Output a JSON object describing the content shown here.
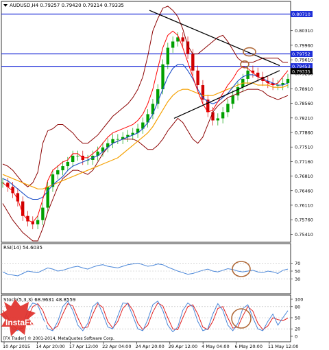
{
  "header": {
    "symbol_ohlc": "AUDUSD,H4  0.79257 0.79420 0.79214 0.79335"
  },
  "main_panel": {
    "price_labels": [
      "0.80310",
      "0.79960",
      "0.79610",
      "0.79280",
      "0.78910",
      "0.78560",
      "0.78210",
      "0.77860",
      "0.77510",
      "0.77160",
      "0.76810",
      "0.76460",
      "0.76110",
      "0.75760",
      "0.75410"
    ],
    "highlighted_levels": [
      {
        "value": "0.80710",
        "color": "#1f2fd8"
      },
      {
        "value": "0.79752",
        "color": "#1f2fd8"
      },
      {
        "value": "0.79453",
        "color": "#1f2fd8"
      },
      {
        "value": "0.79335",
        "color": "#000000"
      }
    ]
  },
  "rsi_panel": {
    "title": "RSI(14) 54.6035",
    "levels": [
      "70",
      "50",
      "30"
    ]
  },
  "stoch_panel": {
    "title": "Stoch(5,3,3) 68.9631 48.8559",
    "levels": [
      "100",
      "80",
      "50",
      "20",
      "0"
    ]
  },
  "x_axis": {
    "labels": [
      "10 Apr 2015",
      "14 Apr 20:00",
      "17 Apr 12:00",
      "22 Apr 04:00",
      "24 Apr 20:00",
      "29 Apr 12:00",
      "4 May 04:00",
      "6 May 20:00",
      "11 May 12:00"
    ]
  },
  "watermark": {
    "brand": "InstaForex"
  },
  "footer": {
    "copyright": "[FX Trader] © 2001-2014, MetaQuotes Software Corp."
  },
  "colors": {
    "upper_band": "#8b0000",
    "lower_band": "#8b0000",
    "ma_fast": "#ff0000",
    "ma_mid": "#1e50c8",
    "ma_slow": "#f5a000",
    "candles": "#00a000",
    "rsi": "#4a86d8",
    "stoch_main": "#4a86d8",
    "stoch_signal": "#e02020",
    "circle": "#b06a3a",
    "watermark_bg": "#e0302a"
  },
  "chart_data": [
    {
      "type": "line",
      "title": "AUDUSD,H4",
      "ylim": [
        0.7525,
        0.8095
      ],
      "x_labels": [
        "10 Apr 2015",
        "14 Apr 20:00",
        "17 Apr 12:00",
        "22 Apr 04:00",
        "24 Apr 20:00",
        "29 Apr 12:00",
        "4 May 04:00",
        "6 May 20:00",
        "11 May 12:00"
      ],
      "series": [
        {
          "values": [
            0.7665,
            0.7655,
            0.764,
            0.762,
            0.7585,
            0.7572,
            0.7565,
            0.7575,
            0.7605,
            0.7655,
            0.7685,
            0.7695,
            0.7705,
            0.7715,
            0.773,
            0.773,
            0.772,
            0.772,
            0.773,
            0.774,
            0.775,
            0.776,
            0.777,
            0.777,
            0.7775,
            0.778,
            0.7785,
            0.7795,
            0.781,
            0.783,
            0.7855,
            0.789,
            0.795,
            0.799,
            0.8005,
            0.8015,
            0.8005,
            0.7975,
            0.7935,
            0.79,
            0.7865,
            0.7835,
            0.7815,
            0.782,
            0.7835,
            0.7855,
            0.7875,
            0.7895,
            0.7915,
            0.7935,
            0.793,
            0.792,
            0.791,
            0.7905,
            0.79,
            0.79,
            0.7905,
            0.7915
          ]
        }
      ],
      "bollinger_upper": [
        0.771,
        0.7705,
        0.7695,
        0.768,
        0.7665,
        0.7655,
        0.7665,
        0.769,
        0.776,
        0.779,
        0.7795,
        0.7805,
        0.7805,
        0.7795,
        0.7785,
        0.777,
        0.776,
        0.776,
        0.777,
        0.778,
        0.7795,
        0.781,
        0.7825,
        0.7835,
        0.7845,
        0.7855,
        0.787,
        0.789,
        0.792,
        0.797,
        0.803,
        0.806,
        0.8085,
        0.809,
        0.808,
        0.8065,
        0.8035,
        0.7995,
        0.7975,
        0.7975,
        0.7985,
        0.7995,
        0.8005,
        0.8015,
        0.802,
        0.8005,
        0.7985,
        0.7965,
        0.7955,
        0.7955,
        0.7955,
        0.796,
        0.7965,
        0.7965,
        0.7965,
        0.7965,
        0.7955,
        0.7955
      ],
      "bollinger_lower": [
        0.7615,
        0.7595,
        0.7575,
        0.756,
        0.7545,
        0.7535,
        0.7525,
        0.7525,
        0.7555,
        0.7595,
        0.7625,
        0.7655,
        0.7675,
        0.7685,
        0.7695,
        0.7695,
        0.769,
        0.7685,
        0.7695,
        0.7715,
        0.7735,
        0.775,
        0.776,
        0.7765,
        0.777,
        0.777,
        0.777,
        0.7765,
        0.7755,
        0.7745,
        0.7745,
        0.7755,
        0.777,
        0.779,
        0.7805,
        0.782,
        0.781,
        0.779,
        0.777,
        0.776,
        0.7775,
        0.7805,
        0.7835,
        0.785,
        0.786,
        0.787,
        0.7875,
        0.788,
        0.7885,
        0.789,
        0.789,
        0.789,
        0.7885,
        0.7875,
        0.787,
        0.7865,
        0.787,
        0.7875
      ],
      "ma_fast": [
        0.7665,
        0.7655,
        0.7645,
        0.7625,
        0.759,
        0.7575,
        0.757,
        0.7585,
        0.7625,
        0.767,
        0.7695,
        0.7705,
        0.7715,
        0.772,
        0.7735,
        0.7735,
        0.7725,
        0.7725,
        0.7735,
        0.7745,
        0.776,
        0.7775,
        0.7785,
        0.779,
        0.7795,
        0.78,
        0.7805,
        0.7815,
        0.783,
        0.7855,
        0.789,
        0.794,
        0.799,
        0.802,
        0.803,
        0.802,
        0.799,
        0.7955,
        0.792,
        0.7885,
        0.7855,
        0.7835,
        0.784,
        0.786,
        0.788,
        0.79,
        0.7915,
        0.7935,
        0.7945,
        0.794,
        0.793,
        0.792,
        0.7915,
        0.7905,
        0.79,
        0.7905,
        0.792,
        0.7935
      ],
      "ma_mid": [
        0.7675,
        0.767,
        0.766,
        0.765,
        0.764,
        0.763,
        0.7625,
        0.7625,
        0.763,
        0.7645,
        0.766,
        0.767,
        0.768,
        0.7695,
        0.7705,
        0.771,
        0.7715,
        0.772,
        0.7725,
        0.773,
        0.774,
        0.775,
        0.776,
        0.7765,
        0.777,
        0.7775,
        0.778,
        0.7785,
        0.7795,
        0.781,
        0.783,
        0.786,
        0.789,
        0.792,
        0.794,
        0.795,
        0.795,
        0.7935,
        0.7915,
        0.789,
        0.787,
        0.786,
        0.7855,
        0.786,
        0.787,
        0.788,
        0.7895,
        0.791,
        0.792,
        0.7925,
        0.7925,
        0.792,
        0.7915,
        0.791,
        0.7905,
        0.79,
        0.79,
        0.7905
      ],
      "ma_slow": [
        0.7685,
        0.768,
        0.7675,
        0.767,
        0.7665,
        0.766,
        0.7655,
        0.765,
        0.765,
        0.7655,
        0.766,
        0.7665,
        0.767,
        0.7675,
        0.768,
        0.7685,
        0.769,
        0.7695,
        0.77,
        0.7705,
        0.771,
        0.7715,
        0.772,
        0.7725,
        0.7735,
        0.7745,
        0.7755,
        0.7765,
        0.7775,
        0.7785,
        0.78,
        0.782,
        0.784,
        0.786,
        0.7875,
        0.7885,
        0.789,
        0.789,
        0.7885,
        0.788,
        0.7875,
        0.7875,
        0.7875,
        0.788,
        0.7885,
        0.789,
        0.7895,
        0.79,
        0.7905,
        0.7905,
        0.7905,
        0.79,
        0.79,
        0.79,
        0.7895,
        0.7895,
        0.7895,
        0.79
      ]
    },
    {
      "type": "line",
      "title": "RSI(14) 54.6035",
      "ylim": [
        0,
        100
      ],
      "series": [
        {
          "values": [
            48,
            42,
            40,
            38,
            44,
            50,
            48,
            46,
            52,
            58,
            55,
            50,
            52,
            56,
            60,
            62,
            58,
            55,
            60,
            64,
            66,
            62,
            60,
            58,
            62,
            66,
            68,
            70,
            66,
            62,
            64,
            68,
            66,
            60,
            55,
            50,
            46,
            42,
            44,
            48,
            52,
            55,
            50,
            48,
            52,
            56,
            54,
            50,
            48,
            50,
            52,
            48,
            46,
            50,
            48,
            44,
            52,
            55
          ]
        }
      ]
    },
    {
      "type": "line",
      "title": "Stoch(5,3,3) 68.9631 48.8559",
      "ylim": [
        0,
        100
      ],
      "series": [
        {
          "values": [
            60,
            40,
            20,
            15,
            30,
            70,
            90,
            85,
            50,
            20,
            15,
            40,
            80,
            95,
            70,
            30,
            15,
            35,
            80,
            92,
            60,
            25,
            20,
            55,
            90,
            88,
            55,
            20,
            15,
            45,
            85,
            95,
            70,
            30,
            12,
            25,
            70,
            90,
            80,
            40,
            15,
            20,
            60,
            88,
            70,
            30,
            15,
            35,
            75,
            85,
            50,
            20,
            15,
            40,
            60,
            30,
            50,
            69
          ]
        },
        {
          "values": [
            70,
            50,
            30,
            18,
            22,
            50,
            80,
            88,
            70,
            35,
            18,
            28,
            60,
            88,
            82,
            50,
            22,
            25,
            60,
            88,
            78,
            40,
            22,
            40,
            75,
            90,
            70,
            35,
            18,
            30,
            65,
            90,
            82,
            50,
            20,
            18,
            50,
            80,
            85,
            60,
            25,
            18,
            40,
            75,
            80,
            50,
            22,
            25,
            55,
            80,
            68,
            35,
            18,
            28,
            50,
            45,
            42,
            49
          ]
        }
      ]
    }
  ]
}
